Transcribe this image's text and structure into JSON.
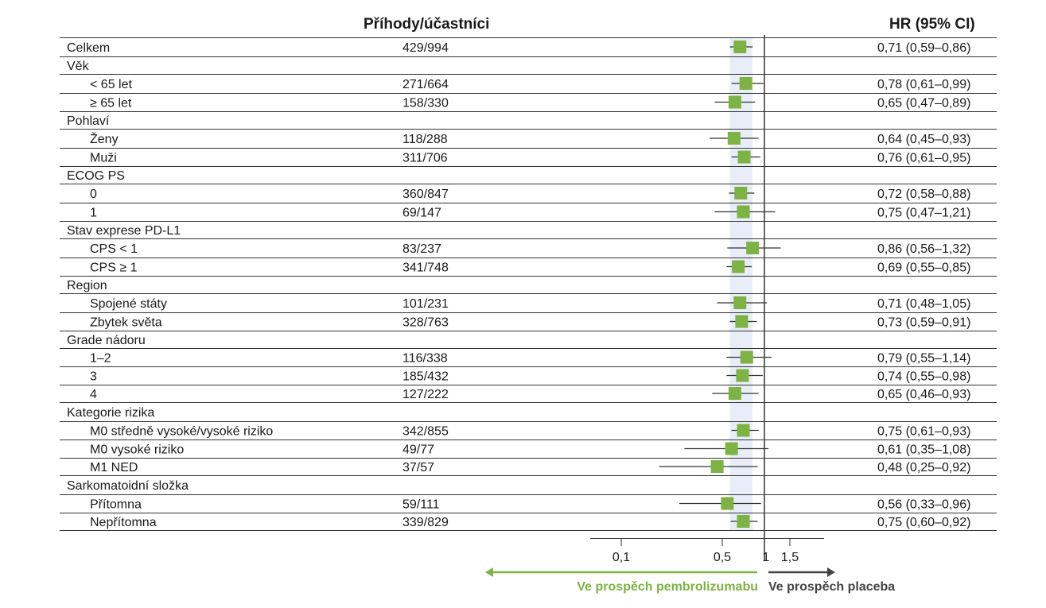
{
  "header": {
    "events_col": "Příhody/účastníci",
    "hr_col": "HR (95% CI)"
  },
  "axis": {
    "ticks": [
      {
        "value": 0.1,
        "label": "0,1"
      },
      {
        "value": 0.5,
        "label": "0,5"
      },
      {
        "value": 1,
        "label": "1"
      },
      {
        "value": 1.5,
        "label": "1,5"
      }
    ],
    "left_arrow_label": "Ve prospěch pembrolizumabu",
    "right_arrow_label": "Ve prospěch placeba"
  },
  "colors": {
    "marker": "#7cb342",
    "band": "#e8edf7",
    "left_arrow": "#7cb342",
    "right_arrow": "#444444",
    "line": "#333333"
  },
  "chart_data": {
    "type": "forest",
    "title": "",
    "overall_ci": [
      0.59,
      0.86
    ],
    "reference_line": 1,
    "rows": [
      {
        "label": "Celkem",
        "indent": false,
        "events": "429/994",
        "hr_text": "0,71 (0,59–0,86)",
        "hr": 0.71,
        "lo": 0.59,
        "hi": 0.86
      },
      {
        "label": "Věk",
        "indent": false,
        "header": true
      },
      {
        "label": "< 65 let",
        "indent": true,
        "events": "271/664",
        "hr_text": "0,78 (0,61–0,99)",
        "hr": 0.78,
        "lo": 0.61,
        "hi": 0.99
      },
      {
        "label": "≥ 65 let",
        "indent": true,
        "events": "158/330",
        "hr_text": "0,65 (0,47–0,89)",
        "hr": 0.65,
        "lo": 0.47,
        "hi": 0.89
      },
      {
        "label": "Pohlaví",
        "indent": false,
        "header": true
      },
      {
        "label": "Ženy",
        "indent": true,
        "events": "118/288",
        "hr_text": "0,64 (0,45–0,93)",
        "hr": 0.64,
        "lo": 0.45,
        "hi": 0.93
      },
      {
        "label": "Muži",
        "indent": true,
        "events": "311/706",
        "hr_text": "0,76 (0,61–0,95)",
        "hr": 0.76,
        "lo": 0.61,
        "hi": 0.95
      },
      {
        "label": "ECOG PS",
        "indent": false,
        "header": true
      },
      {
        "label": "0",
        "indent": true,
        "events": "360/847",
        "hr_text": "0,72 (0,58–0,88)",
        "hr": 0.72,
        "lo": 0.58,
        "hi": 0.88
      },
      {
        "label": "1",
        "indent": true,
        "events": "69/147",
        "hr_text": "0,75 (0,47–1,21)",
        "hr": 0.75,
        "lo": 0.47,
        "hi": 1.21
      },
      {
        "label": "Stav exprese PD-L1",
        "indent": false,
        "header": true
      },
      {
        "label": "CPS < 1",
        "indent": true,
        "events": "83/237",
        "hr_text": "0,86 (0,56–1,32)",
        "hr": 0.86,
        "lo": 0.56,
        "hi": 1.32
      },
      {
        "label": "CPS ≥ 1",
        "indent": true,
        "events": "341/748",
        "hr_text": "0,69 (0,55–0,85)",
        "hr": 0.69,
        "lo": 0.55,
        "hi": 0.85
      },
      {
        "label": "Region",
        "indent": false,
        "header": true
      },
      {
        "label": "Spojené státy",
        "indent": true,
        "events": "101/231",
        "hr_text": "0,71 (0,48–1,05)",
        "hr": 0.71,
        "lo": 0.48,
        "hi": 1.05
      },
      {
        "label": "Zbytek světa",
        "indent": true,
        "events": "328/763",
        "hr_text": "0,73 (0,59–0,91)",
        "hr": 0.73,
        "lo": 0.59,
        "hi": 0.91
      },
      {
        "label": "Grade nádoru",
        "indent": false,
        "header": true
      },
      {
        "label": "1–2",
        "indent": true,
        "events": "116/338",
        "hr_text": "0,79 (0,55–1,14)",
        "hr": 0.79,
        "lo": 0.55,
        "hi": 1.14
      },
      {
        "label": "3",
        "indent": true,
        "events": "185/432",
        "hr_text": "0,74 (0,55–0,98)",
        "hr": 0.74,
        "lo": 0.55,
        "hi": 0.98
      },
      {
        "label": "4",
        "indent": true,
        "events": "127/222",
        "hr_text": "0,65 (0,46–0,93)",
        "hr": 0.65,
        "lo": 0.46,
        "hi": 0.93
      },
      {
        "label": "Kategorie rizika",
        "indent": false,
        "header": true
      },
      {
        "label": "M0 středně vysoké/vysoké riziko",
        "indent": true,
        "events": "342/855",
        "hr_text": "0,75 (0,61–0,93)",
        "hr": 0.75,
        "lo": 0.61,
        "hi": 0.93
      },
      {
        "label": "M0 vysoké riziko",
        "indent": true,
        "events": "49/77",
        "hr_text": "0,61 (0,35–1,08)",
        "hr": 0.61,
        "lo": 0.35,
        "hi": 1.08
      },
      {
        "label": "M1 NED",
        "indent": true,
        "events": "37/57",
        "hr_text": "0,48 (0,25–0,92)",
        "hr": 0.48,
        "lo": 0.25,
        "hi": 0.92
      },
      {
        "label": "Sarkomatoidní složka",
        "indent": false,
        "header": true
      },
      {
        "label": "Přítomna",
        "indent": true,
        "events": "59/111",
        "hr_text": "0,56 (0,33–0,96)",
        "hr": 0.56,
        "lo": 0.33,
        "hi": 0.96
      },
      {
        "label": "Nepřítomna",
        "indent": true,
        "events": "339/829",
        "hr_text": "0,75 (0,60–0,92)",
        "hr": 0.75,
        "lo": 0.6,
        "hi": 0.92
      }
    ]
  }
}
